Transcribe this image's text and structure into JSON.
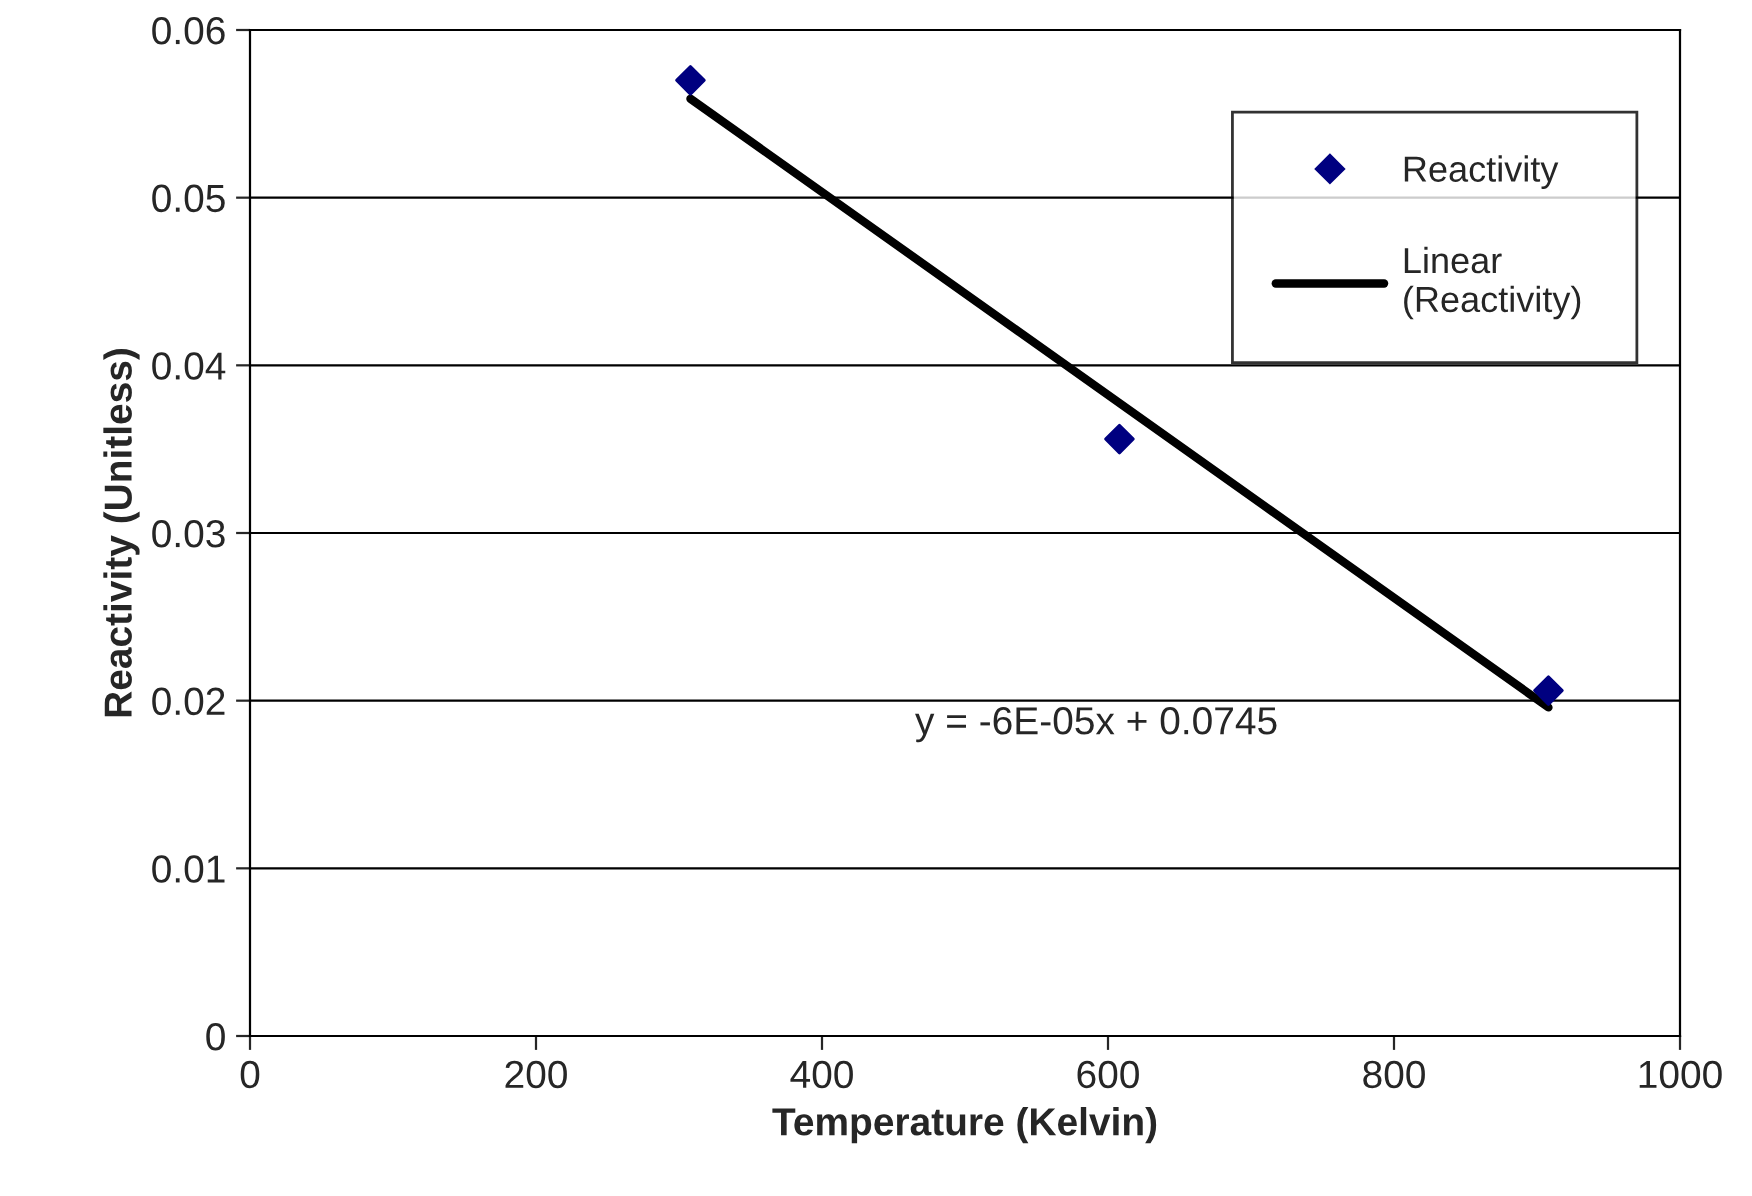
{
  "chart_data": {
    "type": "scatter",
    "xlabel": "Temperature (Kelvin)",
    "ylabel": "Reactivity (Unitless)",
    "series": [
      {
        "name": "Reactivity",
        "color": "#000080",
        "marker": "diamond",
        "x": [
          308,
          608,
          908
        ],
        "values": [
          0.057,
          0.0356,
          0.0206
        ]
      },
      {
        "name": "Linear\n(Reactivity)",
        "type": "line",
        "color": "#000000",
        "marker": "none",
        "line_style": "solid",
        "x": [
          308,
          908
        ],
        "values": [
          0.0559,
          0.0196
        ]
      }
    ],
    "xlim": [
      0,
      1000
    ],
    "xticks": [
      0,
      200,
      400,
      600,
      800,
      1000
    ],
    "ylim": [
      0,
      0.06
    ],
    "yticks": [
      {
        "value": 0,
        "label": "0"
      },
      0.01,
      0.02,
      0.03,
      0.04,
      0.05,
      0.06
    ],
    "grid": "y",
    "legend": "top right",
    "annotations": [
      "y = -6E-05x + 0.0745"
    ]
  }
}
